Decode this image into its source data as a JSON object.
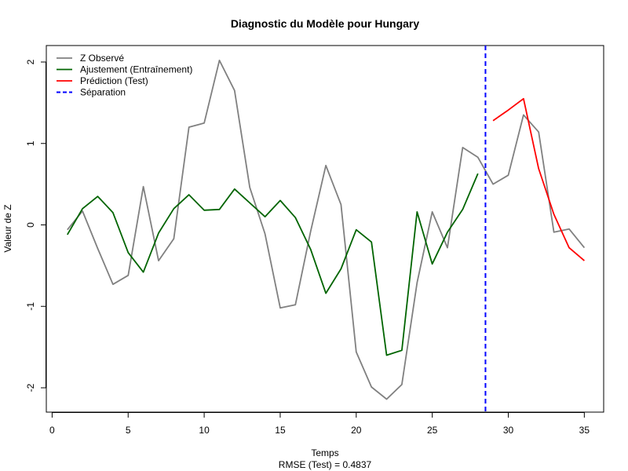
{
  "chart_data": {
    "type": "line",
    "title": "Diagnostic du Modèle pour Hungary",
    "xlabel": "Temps",
    "subtitle": "RMSE (Test) = 0.4837",
    "ylabel": "Valeur de Z",
    "xlim": [
      0,
      35
    ],
    "ylim": [
      -2,
      2
    ],
    "x_ticks": [
      "0",
      "5",
      "10",
      "15",
      "20",
      "25",
      "30",
      "35"
    ],
    "y_ticks": [
      "-2",
      "-1",
      "0",
      "1",
      "2"
    ],
    "grid": false,
    "legend_position": "top-left",
    "separation_x": 28.5,
    "series": [
      {
        "name": "Z Observé",
        "color": "#808080",
        "style": "solid",
        "x": [
          1,
          2,
          3,
          4,
          5,
          6,
          7,
          8,
          9,
          10,
          11,
          12,
          13,
          14,
          15,
          16,
          17,
          18,
          19,
          20,
          21,
          22,
          23,
          24,
          25,
          26,
          27,
          28,
          29,
          30,
          31,
          32,
          33,
          34,
          35
        ],
        "values": [
          -0.06,
          0.17,
          -0.29,
          -0.73,
          -0.62,
          0.47,
          -0.44,
          -0.17,
          1.2,
          1.25,
          2.02,
          1.65,
          0.46,
          -0.11,
          -1.02,
          -0.98,
          -0.08,
          0.73,
          0.25,
          -1.56,
          -1.99,
          -2.14,
          -1.96,
          -0.71,
          0.16,
          -0.28,
          0.95,
          0.83,
          0.5,
          0.61,
          1.35,
          1.14,
          -0.09,
          -0.05,
          -0.28
        ]
      },
      {
        "name": "Ajustement (Entraînement)",
        "color": "#006400",
        "style": "solid",
        "x": [
          1,
          2,
          3,
          4,
          5,
          6,
          7,
          8,
          9,
          10,
          11,
          12,
          13,
          14,
          15,
          16,
          17,
          18,
          19,
          20,
          21,
          22,
          23,
          24,
          25,
          26,
          27,
          28
        ],
        "values": [
          -0.12,
          0.2,
          0.35,
          0.15,
          -0.34,
          -0.58,
          -0.1,
          0.2,
          0.37,
          0.18,
          0.19,
          0.44,
          0.27,
          0.1,
          0.3,
          0.09,
          -0.3,
          -0.84,
          -0.54,
          -0.06,
          -0.21,
          -1.6,
          -1.54,
          0.16,
          -0.48,
          -0.09,
          0.19,
          0.63
        ]
      },
      {
        "name": "Prédiction (Test)",
        "color": "#ff0000",
        "style": "solid",
        "x": [
          29,
          30,
          31,
          32,
          33,
          34,
          35
        ],
        "values": [
          1.28,
          1.41,
          1.55,
          0.69,
          0.13,
          -0.28,
          -0.44
        ]
      }
    ],
    "legend": [
      {
        "label": "Z Observé",
        "color": "#808080",
        "style": "solid"
      },
      {
        "label": "Ajustement (Entraînement)",
        "color": "#006400",
        "style": "solid"
      },
      {
        "label": "Prédiction (Test)",
        "color": "#ff0000",
        "style": "solid"
      },
      {
        "label": "Séparation",
        "color": "#0000ff",
        "style": "dashed"
      }
    ]
  }
}
